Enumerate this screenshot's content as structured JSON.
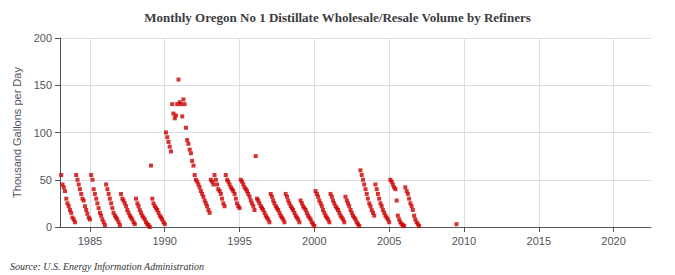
{
  "chart_data": {
    "type": "scatter",
    "title": "Monthly Oregon No 1 Distillate Wholesale/Resale Volume by Refiners",
    "ylabel": "Thousand Gallons per Day",
    "annotations": [
      "Source: U.S. Energy Information Administration"
    ],
    "color": "#cc0000",
    "marker": "square",
    "grid": true,
    "xlim": [
      1983.0,
      2022.5
    ],
    "ylim": [
      0,
      200
    ],
    "xticks": [
      1985,
      1990,
      1995,
      2000,
      2005,
      2010,
      2015,
      2020
    ],
    "yticks": [
      0,
      50,
      100,
      150,
      200
    ],
    "x": [
      1983.08,
      1983.17,
      1983.25,
      1983.33,
      1983.42,
      1983.5,
      1983.58,
      1983.67,
      1983.75,
      1983.83,
      1983.92,
      1984.0,
      1984.08,
      1984.17,
      1984.25,
      1984.33,
      1984.42,
      1984.5,
      1984.58,
      1984.67,
      1984.75,
      1984.83,
      1984.92,
      1985.0,
      1985.08,
      1985.17,
      1985.25,
      1985.33,
      1985.42,
      1985.5,
      1985.58,
      1985.67,
      1985.75,
      1985.83,
      1985.92,
      1986.0,
      1986.08,
      1986.17,
      1986.25,
      1986.33,
      1986.42,
      1986.5,
      1986.58,
      1986.67,
      1986.75,
      1986.83,
      1986.92,
      1987.0,
      1987.08,
      1987.17,
      1987.25,
      1987.33,
      1987.42,
      1987.5,
      1987.58,
      1987.67,
      1987.75,
      1987.83,
      1987.92,
      1988.0,
      1988.08,
      1988.17,
      1988.25,
      1988.33,
      1988.42,
      1988.5,
      1988.58,
      1988.67,
      1988.75,
      1988.83,
      1988.92,
      1989.0,
      1989.08,
      1989.17,
      1989.25,
      1989.33,
      1989.42,
      1989.5,
      1989.58,
      1989.67,
      1989.75,
      1989.83,
      1989.92,
      1990.0,
      1990.08,
      1990.17,
      1990.25,
      1990.33,
      1990.42,
      1990.5,
      1990.58,
      1990.67,
      1990.75,
      1990.83,
      1990.92,
      1991.0,
      1991.08,
      1991.17,
      1991.25,
      1991.33,
      1991.42,
      1991.5,
      1991.58,
      1991.67,
      1991.75,
      1991.83,
      1991.92,
      1992.0,
      1992.08,
      1992.17,
      1992.25,
      1992.33,
      1992.42,
      1992.5,
      1992.58,
      1992.67,
      1992.75,
      1992.83,
      1992.92,
      1993.0,
      1993.08,
      1993.17,
      1993.25,
      1993.33,
      1993.42,
      1993.5,
      1993.58,
      1993.67,
      1993.75,
      1993.83,
      1993.92,
      1994.0,
      1994.08,
      1994.17,
      1994.25,
      1994.33,
      1994.42,
      1994.5,
      1994.58,
      1994.67,
      1994.75,
      1994.83,
      1994.92,
      1995.0,
      1995.08,
      1995.17,
      1995.25,
      1995.33,
      1995.42,
      1995.5,
      1995.58,
      1995.67,
      1995.75,
      1995.83,
      1995.92,
      1996.0,
      1996.08,
      1996.17,
      1996.25,
      1996.33,
      1996.42,
      1996.5,
      1996.58,
      1996.67,
      1996.75,
      1996.83,
      1996.92,
      1997.0,
      1997.08,
      1997.17,
      1997.25,
      1997.33,
      1997.42,
      1997.5,
      1997.58,
      1997.67,
      1997.75,
      1997.83,
      1997.92,
      1998.0,
      1998.08,
      1998.17,
      1998.25,
      1998.33,
      1998.42,
      1998.5,
      1998.58,
      1998.67,
      1998.75,
      1998.83,
      1998.92,
      1999.0,
      1999.08,
      1999.17,
      1999.25,
      1999.33,
      1999.42,
      1999.5,
      1999.58,
      1999.67,
      1999.75,
      1999.83,
      1999.92,
      2000.0,
      2000.08,
      2000.17,
      2000.25,
      2000.33,
      2000.42,
      2000.5,
      2000.58,
      2000.67,
      2000.75,
      2000.83,
      2000.92,
      2001.0,
      2001.08,
      2001.17,
      2001.25,
      2001.33,
      2001.42,
      2001.5,
      2001.58,
      2001.67,
      2001.75,
      2001.83,
      2001.92,
      2002.0,
      2002.08,
      2002.17,
      2002.25,
      2002.33,
      2002.42,
      2002.5,
      2002.58,
      2002.67,
      2002.75,
      2002.83,
      2002.92,
      2003.0,
      2003.08,
      2003.17,
      2003.25,
      2003.33,
      2003.42,
      2003.5,
      2003.58,
      2003.67,
      2003.75,
      2003.83,
      2003.92,
      2004.0,
      2004.08,
      2004.17,
      2004.25,
      2004.33,
      2004.42,
      2004.5,
      2004.58,
      2004.67,
      2004.75,
      2004.83,
      2004.92,
      2005.0,
      2005.08,
      2005.17,
      2005.25,
      2005.33,
      2005.42,
      2005.5,
      2005.58,
      2005.67,
      2005.75,
      2005.83,
      2005.92,
      2006.0,
      2006.08,
      2006.17,
      2006.25,
      2006.33,
      2006.42,
      2006.5,
      2006.58,
      2006.67,
      2006.75,
      2006.83,
      2006.92,
      2007.0,
      2009.5
    ],
    "values": [
      55,
      45,
      42,
      38,
      30,
      25,
      22,
      18,
      15,
      10,
      8,
      5,
      55,
      50,
      45,
      40,
      35,
      30,
      28,
      22,
      18,
      14,
      10,
      8,
      55,
      50,
      40,
      35,
      30,
      25,
      20,
      15,
      12,
      8,
      5,
      2,
      45,
      40,
      35,
      30,
      25,
      20,
      15,
      12,
      10,
      8,
      5,
      2,
      35,
      30,
      28,
      25,
      22,
      18,
      15,
      12,
      10,
      8,
      5,
      3,
      30,
      25,
      22,
      18,
      15,
      12,
      10,
      8,
      5,
      3,
      2,
      0,
      65,
      30,
      25,
      22,
      20,
      18,
      15,
      12,
      10,
      8,
      5,
      3,
      100,
      95,
      90,
      85,
      80,
      130,
      120,
      115,
      118,
      130,
      156,
      132,
      130,
      117,
      135,
      130,
      105,
      92,
      88,
      82,
      78,
      70,
      65,
      55,
      50,
      48,
      45,
      42,
      38,
      35,
      32,
      28,
      25,
      22,
      18,
      15,
      50,
      48,
      45,
      55,
      50,
      45,
      40,
      38,
      35,
      30,
      25,
      22,
      55,
      50,
      48,
      45,
      42,
      40,
      38,
      35,
      30,
      25,
      22,
      20,
      50,
      48,
      45,
      42,
      40,
      38,
      35,
      32,
      28,
      25,
      22,
      18,
      75,
      30,
      28,
      25,
      22,
      20,
      18,
      15,
      12,
      10,
      8,
      5,
      35,
      32,
      28,
      25,
      22,
      20,
      18,
      15,
      12,
      10,
      8,
      5,
      35,
      32,
      28,
      25,
      22,
      20,
      18,
      15,
      12,
      10,
      8,
      5,
      28,
      25,
      22,
      20,
      18,
      15,
      12,
      10,
      8,
      5,
      3,
      1,
      38,
      35,
      32,
      28,
      25,
      22,
      18,
      15,
      12,
      10,
      8,
      5,
      35,
      32,
      28,
      25,
      22,
      20,
      18,
      15,
      12,
      10,
      8,
      5,
      32,
      28,
      25,
      22,
      18,
      15,
      12,
      10,
      8,
      5,
      3,
      1,
      60,
      55,
      50,
      45,
      40,
      35,
      30,
      25,
      22,
      18,
      15,
      12,
      45,
      40,
      35,
      30,
      25,
      22,
      18,
      15,
      12,
      10,
      8,
      5,
      50,
      48,
      45,
      42,
      40,
      28,
      12,
      8,
      5,
      3,
      2,
      1,
      42,
      38,
      35,
      30,
      25,
      22,
      18,
      12,
      8,
      5,
      3,
      1,
      3
    ]
  }
}
